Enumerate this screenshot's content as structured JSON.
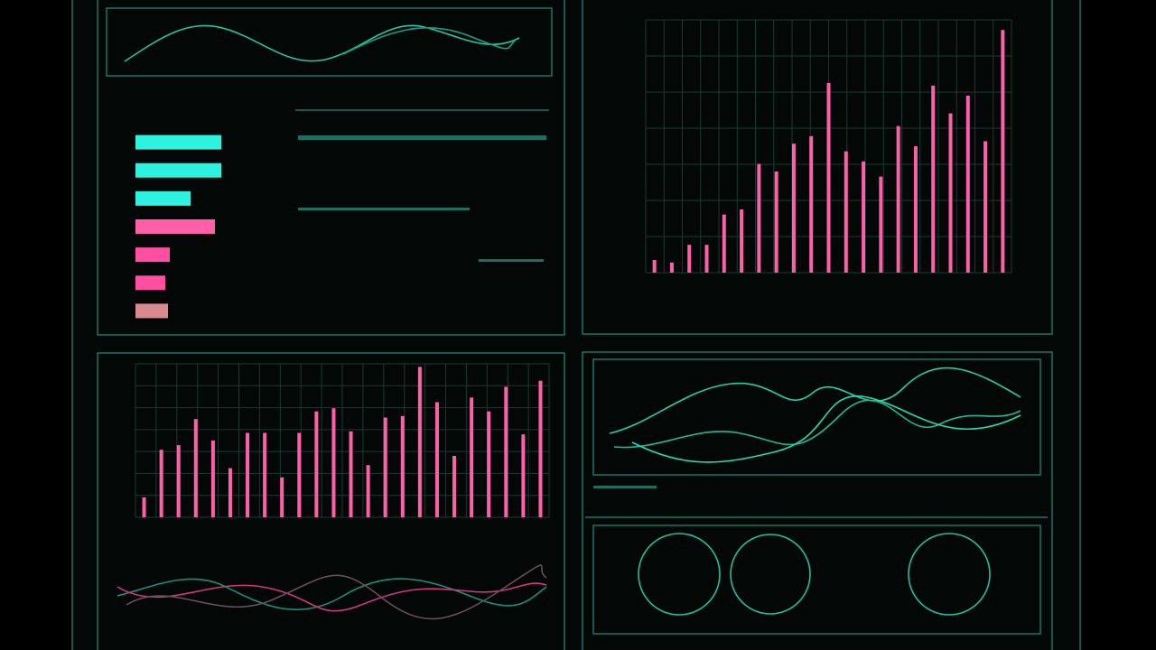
{
  "chart_data": [
    {
      "type": "hbar",
      "categories": [
        null,
        null,
        null,
        null,
        null,
        null,
        null
      ],
      "values": [
        95,
        95,
        61,
        88,
        38,
        33,
        36
      ],
      "colors": [
        "#2ef2e0",
        "#2ef2e0",
        "#2ef2e0",
        "#ff5fa8",
        "#ff4fa0",
        "#ff4fa0",
        "#d98a8e"
      ],
      "xlim": [
        0,
        100
      ]
    },
    {
      "type": "bar",
      "categories": [
        null,
        null,
        null,
        null,
        null,
        null,
        null,
        null,
        null,
        null,
        null,
        null,
        null,
        null,
        null,
        null,
        null,
        null,
        null,
        null,
        null
      ],
      "values": [
        5,
        4,
        11,
        11,
        23,
        25,
        43,
        40,
        51,
        54,
        75,
        48,
        44,
        38,
        58,
        50,
        74,
        63,
        70,
        52,
        96
      ],
      "color": "#ff5fa8",
      "ylim": [
        0,
        100
      ]
    },
    {
      "type": "bar",
      "categories": [
        null,
        null,
        null,
        null,
        null,
        null,
        null,
        null,
        null,
        null,
        null,
        null,
        null,
        null,
        null,
        null,
        null,
        null,
        null,
        null,
        null,
        null,
        null,
        null
      ],
      "values": [
        13,
        44,
        47,
        64,
        50,
        32,
        55,
        55,
        26,
        55,
        69,
        71,
        56,
        34,
        65,
        66,
        98,
        75,
        40,
        78,
        69,
        85,
        54,
        89
      ],
      "color": "#ff5fa8",
      "ylim": [
        0,
        100
      ]
    }
  ]
}
